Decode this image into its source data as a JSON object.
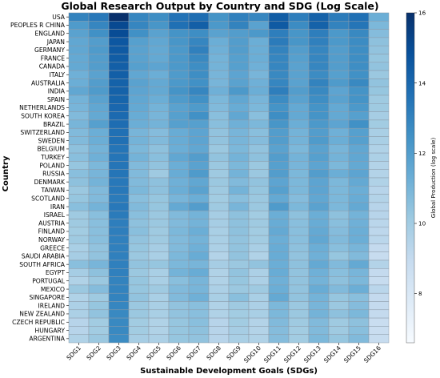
{
  "chart_data": {
    "type": "heatmap",
    "title": "Global Research Output by Country and SDG (Log Scale)",
    "xlabel": "Sustainable Development Goals (SDGs)",
    "ylabel": "Country",
    "x": [
      "SDG1",
      "SDG2",
      "SDG3",
      "SDG4",
      "SDG5",
      "SDG6",
      "SDG7",
      "SDG8",
      "SDG9",
      "SDG10",
      "SDG11",
      "SDG12",
      "SDG13",
      "SDG14",
      "SDG15",
      "SDG16"
    ],
    "y": [
      "USA",
      "PEOPLES R CHINA",
      "ENGLAND",
      "JAPAN",
      "GERMANY",
      "FRANCE",
      "CANADA",
      "ITALY",
      "AUSTRALIA",
      "INDIA",
      "SPAIN",
      "NETHERLANDS",
      "SOUTH KOREA",
      "BRAZIL",
      "SWITZERLAND",
      "SWEDEN",
      "BELGIUM",
      "TURKEY",
      "POLAND",
      "RUSSIA",
      "DENMARK",
      "TAIWAN",
      "SCOTLAND",
      "IRAN",
      "ISRAEL",
      "AUSTRIA",
      "FINLAND",
      "NORWAY",
      "GREECE",
      "SAUDI ARABIA",
      "SOUTH AFRICA",
      "EGYPT",
      "PORTUGAL",
      "MEXICO",
      "SINGAPORE",
      "IRELAND",
      "NEW ZEALAND",
      "CZECH REPUBLIC",
      "HUNGARY",
      "ARGENTINA"
    ],
    "values": [
      [
        13.0,
        13.4,
        16.0,
        12.9,
        12.6,
        13.6,
        13.8,
        12.4,
        13.1,
        12.9,
        14.4,
        13.2,
        14.2,
        13.3,
        13.7,
        11.3
      ],
      [
        12.1,
        12.9,
        15.1,
        12.9,
        12.3,
        13.7,
        14.3,
        12.2,
        13.0,
        11.8,
        14.5,
        12.7,
        14.2,
        13.0,
        13.5,
        10.9
      ],
      [
        11.8,
        12.5,
        15.0,
        12.5,
        11.8,
        12.4,
        12.6,
        11.8,
        12.0,
        12.2,
        13.2,
        12.3,
        13.2,
        12.2,
        12.8,
        10.7
      ],
      [
        11.6,
        12.0,
        14.6,
        11.9,
        11.6,
        12.3,
        12.9,
        11.3,
        12.0,
        11.3,
        13.3,
        12.3,
        13.1,
        12.2,
        12.7,
        10.5
      ],
      [
        11.6,
        12.1,
        14.5,
        11.8,
        11.5,
        12.2,
        13.1,
        11.2,
        12.0,
        11.3,
        13.0,
        12.0,
        12.9,
        12.0,
        12.6,
        10.4
      ],
      [
        11.5,
        12.0,
        14.4,
        11.8,
        11.5,
        12.2,
        12.8,
        11.1,
        11.9,
        11.3,
        12.9,
        11.9,
        12.9,
        12.0,
        12.6,
        10.3
      ],
      [
        11.5,
        12.0,
        14.3,
        11.9,
        11.7,
        12.2,
        12.6,
        11.1,
        11.9,
        11.2,
        12.9,
        11.8,
        12.9,
        12.0,
        12.6,
        10.4
      ],
      [
        11.2,
        11.8,
        14.3,
        11.6,
        11.3,
        12.1,
        12.6,
        11.0,
        11.7,
        11.0,
        12.8,
        11.8,
        12.7,
        11.9,
        12.5,
        10.2
      ],
      [
        11.3,
        12.0,
        14.2,
        11.8,
        11.5,
        12.2,
        12.5,
        11.0,
        11.8,
        11.2,
        12.9,
        11.8,
        13.0,
        12.1,
        12.8,
        10.4
      ],
      [
        11.6,
        12.1,
        14.2,
        11.7,
        11.5,
        12.4,
        12.9,
        11.2,
        12.2,
        11.3,
        13.2,
        12.0,
        12.8,
        11.7,
        12.4,
        10.3
      ],
      [
        11.1,
        11.8,
        14.1,
        11.6,
        11.3,
        12.1,
        12.5,
        10.9,
        11.6,
        11.0,
        12.7,
        11.8,
        12.6,
        11.8,
        12.4,
        10.1
      ],
      [
        11.0,
        11.6,
        14.0,
        11.5,
        11.1,
        11.8,
        12.1,
        10.8,
        11.4,
        10.9,
        12.4,
        11.5,
        12.4,
        11.5,
        12.2,
        10.1
      ],
      [
        10.8,
        11.5,
        13.9,
        11.4,
        11.0,
        11.9,
        12.5,
        10.6,
        11.6,
        10.6,
        12.6,
        11.5,
        12.4,
        11.5,
        11.9,
        9.9
      ],
      [
        11.0,
        11.9,
        13.8,
        11.3,
        11.1,
        11.9,
        11.9,
        10.6,
        11.2,
        10.9,
        12.3,
        11.3,
        12.2,
        11.7,
        12.5,
        10.0
      ],
      [
        10.8,
        11.3,
        13.7,
        11.0,
        10.7,
        11.4,
        11.7,
        10.4,
        11.0,
        10.6,
        12.0,
        11.1,
        12.0,
        11.2,
        11.9,
        9.8
      ],
      [
        10.8,
        11.3,
        13.7,
        11.1,
        10.8,
        11.4,
        11.7,
        10.4,
        11.0,
        10.7,
        12.0,
        11.1,
        12.1,
        11.3,
        11.9,
        9.8
      ],
      [
        10.5,
        11.1,
        13.5,
        10.9,
        10.5,
        11.3,
        11.6,
        10.2,
        10.9,
        10.4,
        11.8,
        10.9,
        11.8,
        11.0,
        11.6,
        9.6
      ],
      [
        10.6,
        11.2,
        13.5,
        11.1,
        10.6,
        11.6,
        12.0,
        10.4,
        11.1,
        10.5,
        12.0,
        11.1,
        11.9,
        11.1,
        11.6,
        9.7
      ],
      [
        10.3,
        10.9,
        13.5,
        10.8,
        10.4,
        11.3,
        11.8,
        10.2,
        10.9,
        10.2,
        11.9,
        11.0,
        11.7,
        10.9,
        11.5,
        9.5
      ],
      [
        10.6,
        11.0,
        13.5,
        10.8,
        10.1,
        11.4,
        12.1,
        10.1,
        11.1,
        10.2,
        12.0,
        10.9,
        12.0,
        11.3,
        11.7,
        9.5
      ],
      [
        10.5,
        11.1,
        13.4,
        10.8,
        10.5,
        11.2,
        11.6,
        10.2,
        10.8,
        10.4,
        11.7,
        10.9,
        11.7,
        10.9,
        11.5,
        9.6
      ],
      [
        10.2,
        10.8,
        13.4,
        10.9,
        10.5,
        11.3,
        11.8,
        10.1,
        11.1,
        10.3,
        11.9,
        10.9,
        11.7,
        10.9,
        11.3,
        9.4
      ],
      [
        10.3,
        10.8,
        13.3,
        10.6,
        10.3,
        11.0,
        11.3,
        10.0,
        10.6,
        10.2,
        11.5,
        10.7,
        11.6,
        10.9,
        11.4,
        9.5
      ],
      [
        10.6,
        11.1,
        13.4,
        10.8,
        10.3,
        11.5,
        12.0,
        10.1,
        11.0,
        10.2,
        12.1,
        10.9,
        11.8,
        10.9,
        11.5,
        9.4
      ],
      [
        10.1,
        10.6,
        13.3,
        10.6,
        10.2,
        10.8,
        11.1,
        9.9,
        10.5,
        10.0,
        11.3,
        10.5,
        11.3,
        10.5,
        11.1,
        9.4
      ],
      [
        10.1,
        10.6,
        13.2,
        10.5,
        10.2,
        10.8,
        11.1,
        9.9,
        10.5,
        10.1,
        11.4,
        10.6,
        11.4,
        10.6,
        11.2,
        9.3
      ],
      [
        10.0,
        10.6,
        13.2,
        10.6,
        10.1,
        10.9,
        11.3,
        9.8,
        10.5,
        10.0,
        11.5,
        10.6,
        11.5,
        10.7,
        11.3,
        9.2
      ],
      [
        10.1,
        10.6,
        13.1,
        10.4,
        10.1,
        10.8,
        11.1,
        9.8,
        10.4,
        10.0,
        11.3,
        10.6,
        11.6,
        10.8,
        11.3,
        9.3
      ],
      [
        9.8,
        10.4,
        13.1,
        10.3,
        9.9,
        10.8,
        11.2,
        9.7,
        10.4,
        9.8,
        11.4,
        10.5,
        11.3,
        10.6,
        11.0,
        9.0
      ],
      [
        9.9,
        10.4,
        13.1,
        10.2,
        9.8,
        10.9,
        11.4,
        9.5,
        10.4,
        9.6,
        11.4,
        10.4,
        11.2,
        10.3,
        10.8,
        8.9
      ],
      [
        10.6,
        11.0,
        13.1,
        10.4,
        10.3,
        10.9,
        11.0,
        9.9,
        10.2,
        10.4,
        11.3,
        10.5,
        11.5,
        10.8,
        11.5,
        9.5
      ],
      [
        9.9,
        10.5,
        13.1,
        10.2,
        9.8,
        11.1,
        11.4,
        9.6,
        10.4,
        9.7,
        11.4,
        10.4,
        11.2,
        10.6,
        11.0,
        9.0
      ],
      [
        9.6,
        10.2,
        13.0,
        10.3,
        9.8,
        10.6,
        11.0,
        9.6,
        10.3,
        9.7,
        11.2,
        10.4,
        11.1,
        10.5,
        10.9,
        8.9
      ],
      [
        10.2,
        10.7,
        13.0,
        10.3,
        10.1,
        10.8,
        11.0,
        9.7,
        10.2,
        10.1,
        11.3,
        10.4,
        11.4,
        10.8,
        11.3,
        9.3
      ],
      [
        9.6,
        10.1,
        13.0,
        10.4,
        9.8,
        10.8,
        11.2,
        9.8,
        10.6,
        9.8,
        11.5,
        10.4,
        11.1,
        10.3,
        10.6,
        9.0
      ],
      [
        9.7,
        10.3,
        12.9,
        10.2,
        9.8,
        10.4,
        10.6,
        9.6,
        10.1,
        9.7,
        10.9,
        10.2,
        11.0,
        10.2,
        10.7,
        9.0
      ],
      [
        9.7,
        10.4,
        12.8,
        10.2,
        9.8,
        10.4,
        10.6,
        9.6,
        10.0,
        9.8,
        10.9,
        10.2,
        11.1,
        10.5,
        10.9,
        9.0
      ],
      [
        9.4,
        10.0,
        12.8,
        10.0,
        9.6,
        10.3,
        10.6,
        9.4,
        10.0,
        9.5,
        10.8,
        10.1,
        10.8,
        10.1,
        10.5,
        8.8
      ],
      [
        9.4,
        10.0,
        12.8,
        10.0,
        9.6,
        10.3,
        10.5,
        9.4,
        9.9,
        9.5,
        10.7,
        10.0,
        10.8,
        10.1,
        10.6,
        8.8
      ],
      [
        9.6,
        10.2,
        12.7,
        9.9,
        9.7,
        10.3,
        10.4,
        9.4,
        9.8,
        9.6,
        10.7,
        10.0,
        10.9,
        10.3,
        10.8,
        8.9
      ]
    ],
    "colorbar": {
      "label": "Global Production (log scale)",
      "range": [
        6.6,
        16.0
      ],
      "ticks": [
        "8",
        "10",
        "12",
        "14",
        "16"
      ],
      "colormap": "Blues"
    }
  }
}
